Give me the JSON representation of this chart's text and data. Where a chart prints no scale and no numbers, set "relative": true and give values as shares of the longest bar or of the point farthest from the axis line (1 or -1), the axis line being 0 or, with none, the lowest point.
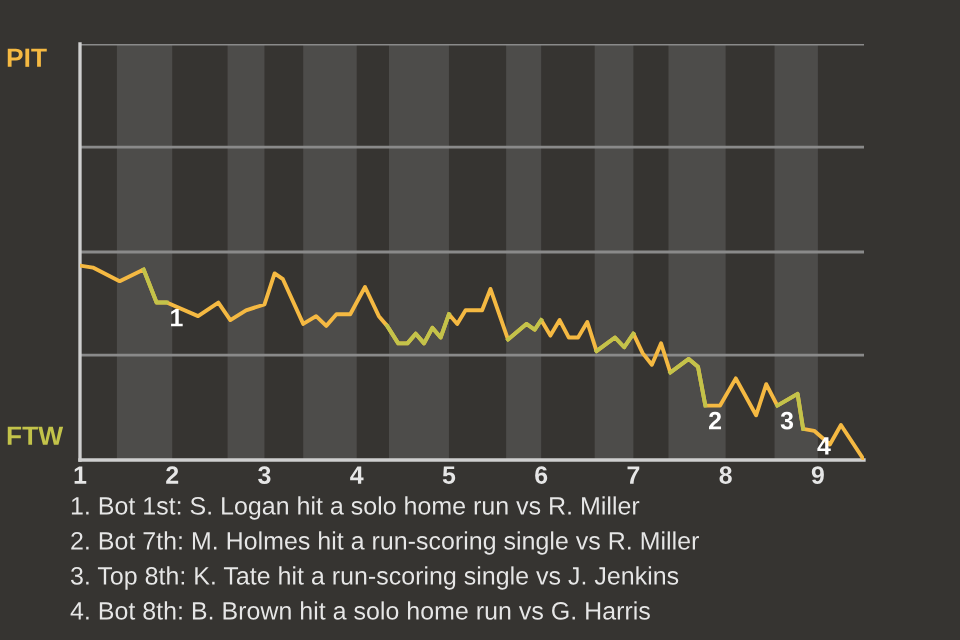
{
  "chart_data": {
    "type": "line",
    "relative": true,
    "x": [
      1.0,
      1.14,
      1.43,
      1.69,
      1.83,
      1.94,
      2.28,
      2.5,
      2.63,
      2.8,
      3.0,
      3.11,
      3.2,
      3.42,
      3.56,
      3.67,
      3.78,
      3.93,
      4.09,
      4.24,
      4.33,
      4.45,
      4.55,
      4.64,
      4.73,
      4.82,
      4.91,
      5.0,
      5.09,
      5.18,
      5.36,
      5.45,
      5.64,
      5.84,
      5.93,
      6.0,
      6.1,
      6.2,
      6.3,
      6.4,
      6.5,
      6.6,
      6.8,
      6.9,
      7.0,
      7.1,
      7.2,
      7.3,
      7.4,
      7.6,
      7.7,
      7.78,
      7.94,
      8.11,
      8.33,
      8.44,
      8.56,
      8.78,
      8.84,
      8.96,
      9.13,
      9.25,
      9.5
    ],
    "series": [
      {
        "color": "#f5b942",
        "values": [
          1.0,
          0.99,
          0.92,
          0.98,
          0.81,
          0.81,
          0.74,
          0.81,
          0.72,
          0.77,
          0.8,
          0.96,
          0.93,
          0.7,
          0.74,
          0.69,
          0.75,
          0.75,
          0.89,
          0.74,
          0.69,
          0.6,
          0.6,
          0.65,
          0.6,
          0.68,
          0.63,
          0.75,
          0.7,
          0.77,
          0.77,
          0.88,
          0.62,
          0.7,
          0.67,
          0.72,
          0.64,
          0.72,
          0.63,
          0.63,
          0.71,
          0.56,
          0.63,
          0.58,
          0.65,
          0.55,
          0.49,
          0.6,
          0.45,
          0.52,
          0.48,
          0.28,
          0.28,
          0.42,
          0.23,
          0.39,
          0.28,
          0.34,
          0.16,
          0.15,
          0.08,
          0.18,
          0
        ]
      },
      {
        "color": "#c3c34a",
        "values": [
          null,
          null,
          null,
          0.98,
          0.81,
          0.81,
          null,
          null,
          null,
          null,
          null,
          null,
          null,
          null,
          null,
          null,
          null,
          null,
          null,
          null,
          0.69,
          0.6,
          0.6,
          0.65,
          0.6,
          0.68,
          0.63,
          0.75,
          null,
          null,
          null,
          null,
          0.62,
          0.7,
          0.67,
          0.72,
          null,
          null,
          null,
          null,
          null,
          0.56,
          0.63,
          0.58,
          0.65,
          null,
          null,
          null,
          0.45,
          0.52,
          0.48,
          0.28,
          null,
          null,
          null,
          null,
          0.28,
          0.34,
          0.16,
          null,
          null,
          null,
          null
        ]
      }
    ],
    "xlim": [
      1,
      9.5
    ],
    "xticks": [
      1,
      2,
      3,
      4,
      5,
      6,
      7,
      8,
      9
    ],
    "bands": [
      {
        "axis": "x",
        "from": 1.4,
        "to": 2,
        "color": "#4d4c4a"
      },
      {
        "axis": "x",
        "from": 2.6,
        "to": 3,
        "color": "#4d4c4a"
      },
      {
        "axis": "x",
        "from": 3.42,
        "to": 4,
        "color": "#4d4c4a"
      },
      {
        "axis": "x",
        "from": 4.35,
        "to": 5,
        "color": "#4d4c4a"
      },
      {
        "axis": "x",
        "from": 5.62,
        "to": 6,
        "color": "#4d4c4a"
      },
      {
        "axis": "x",
        "from": 6.58,
        "to": 7,
        "color": "#4d4c4a"
      },
      {
        "axis": "x",
        "from": 7.38,
        "to": 8,
        "color": "#4d4c4a"
      },
      {
        "axis": "x",
        "from": 8.53,
        "to": 9,
        "color": "#4d4c4a"
      }
    ],
    "annotations": [
      "PIT",
      "FTW",
      {
        "text": "1",
        "x": 1.94,
        "y": 0.81
      },
      {
        "text": "2",
        "x": 7.78,
        "y": 0.28
      },
      {
        "text": "3",
        "x": 8.56,
        "y": 0.28
      },
      {
        "text": "4",
        "x": 8.96,
        "y": 0.15
      },
      "1. Bot 1st: S. Logan hit a solo home run vs R. Miller",
      "2. Bot 7th: M. Holmes hit a run-scoring single vs R. Miller",
      "3. Top 8th: K. Tate hit a run-scoring single vs J. Jenkins",
      "4. Bot 8th: B. Brown hit a solo home run vs G. Harris"
    ],
    "ref_lines": [
      {
        "axis": "y",
        "value": 0.54,
        "color": "#8a8a8a"
      },
      {
        "axis": "y",
        "value": 1.07,
        "color": "#8a8a8a"
      },
      {
        "axis": "y",
        "value": 1.61,
        "color": "#8a8a8a"
      },
      {
        "axis": "y",
        "value": 2.14,
        "color": "#8a8a8a"
      }
    ],
    "marker": "none",
    "line_style": "solid",
    "tick_labels": "x"
  }
}
